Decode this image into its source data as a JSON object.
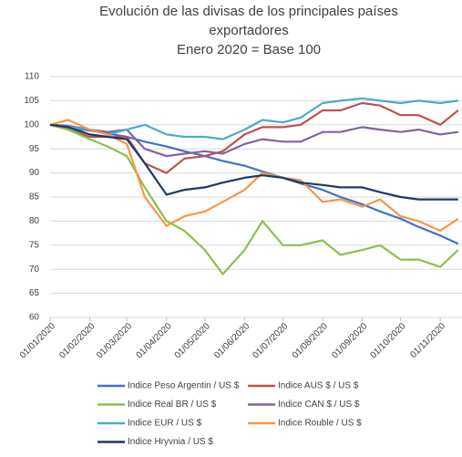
{
  "chart_data": {
    "type": "line",
    "title": "Evolución de las divisas de los principales países exportadores",
    "subtitle": "Enero 2020 = Base 100",
    "x": [
      "2020-01-01",
      "2020-01-15",
      "2020-02-01",
      "2020-02-15",
      "2020-03-01",
      "2020-03-15",
      "2020-04-01",
      "2020-04-15",
      "2020-05-01",
      "2020-05-15",
      "2020-06-01",
      "2020-06-15",
      "2020-07-01",
      "2020-07-15",
      "2020-08-01",
      "2020-08-15",
      "2020-09-01",
      "2020-09-15",
      "2020-10-01",
      "2020-10-15",
      "2020-11-01",
      "2020-11-15"
    ],
    "series": [
      {
        "name": "Indice Peso Argentin / US $",
        "color": "#4472c4",
        "values": [
          100,
          99.4,
          98.8,
          98.2,
          97.5,
          96.5,
          95.5,
          94.5,
          93.5,
          92.5,
          91.5,
          90.3,
          89,
          87.8,
          86.5,
          85,
          83.5,
          82,
          80.5,
          78.8,
          77,
          75.3
        ]
      },
      {
        "name": "Indice AUS $ / US $",
        "color": "#c0504d",
        "values": [
          100,
          99,
          97.5,
          97.5,
          97.5,
          92,
          90,
          93,
          93.5,
          94.5,
          98,
          99.5,
          99.5,
          100,
          103,
          103,
          104.5,
          104,
          102,
          102,
          100,
          103
        ]
      },
      {
        "name": "Indice Real BR / US $",
        "color": "#8cc04f",
        "values": [
          100,
          99,
          97,
          95.5,
          93.5,
          87,
          80,
          78,
          74,
          69,
          74,
          80,
          75,
          75,
          76,
          73,
          74,
          75,
          72,
          72,
          70.5,
          74
        ]
      },
      {
        "name": "Indice CAN $ / US $",
        "color": "#8064a2",
        "values": [
          100,
          99.8,
          99,
          98.5,
          99,
          95,
          93.5,
          94,
          94.5,
          94,
          96,
          97,
          96.5,
          96.5,
          98.5,
          98.5,
          99.5,
          99,
          98.5,
          99,
          98,
          98.5
        ]
      },
      {
        "name": "Indice EUR / US $",
        "color": "#4bacc6",
        "values": [
          100,
          99.5,
          99,
          98,
          99,
          100,
          98,
          97.5,
          97.5,
          97,
          99,
          101,
          100.5,
          101.5,
          104.5,
          105,
          105.5,
          105,
          104.5,
          105,
          104.5,
          105
        ]
      },
      {
        "name": "Indice Rouble / US $",
        "color": "#f79646",
        "values": [
          100,
          101,
          99,
          98,
          96,
          85,
          79,
          81,
          82,
          84,
          86.5,
          90,
          89,
          88.5,
          84,
          84.5,
          83,
          84.5,
          81,
          80,
          78,
          80.5
        ]
      },
      {
        "name": "Indice Hryvnia / US $",
        "color": "#1f3864",
        "values": [
          100,
          99.5,
          98,
          97.5,
          97,
          92,
          85.5,
          86.5,
          87,
          88,
          89,
          89.5,
          89,
          88,
          87.5,
          87,
          87,
          86,
          85,
          84.5,
          84.5,
          84.5
        ]
      }
    ],
    "xlim": [
      "2020-01-01",
      "2020-11-18"
    ],
    "xticks": [
      {
        "value": "2020-01-01",
        "label": "01/01/2020"
      },
      {
        "value": "2020-02-01",
        "label": "01/02/2020"
      },
      {
        "value": "2020-03-01",
        "label": "01/03/2020"
      },
      {
        "value": "2020-04-01",
        "label": "01/04/2020"
      },
      {
        "value": "2020-05-01",
        "label": "01/05/2020"
      },
      {
        "value": "2020-06-01",
        "label": "01/06/2020"
      },
      {
        "value": "2020-07-01",
        "label": "01/07/2020"
      },
      {
        "value": "2020-08-01",
        "label": "01/08/2020"
      },
      {
        "value": "2020-09-01",
        "label": "01/09/2020"
      },
      {
        "value": "2020-10-01",
        "label": "01/10/2020"
      },
      {
        "value": "2020-11-01",
        "label": "01/11/2020"
      }
    ],
    "ylim": [
      60,
      110
    ],
    "yticks": [
      60,
      65,
      70,
      75,
      80,
      85,
      90,
      95,
      100,
      105,
      110
    ],
    "grid": true,
    "legend": "bottom"
  }
}
